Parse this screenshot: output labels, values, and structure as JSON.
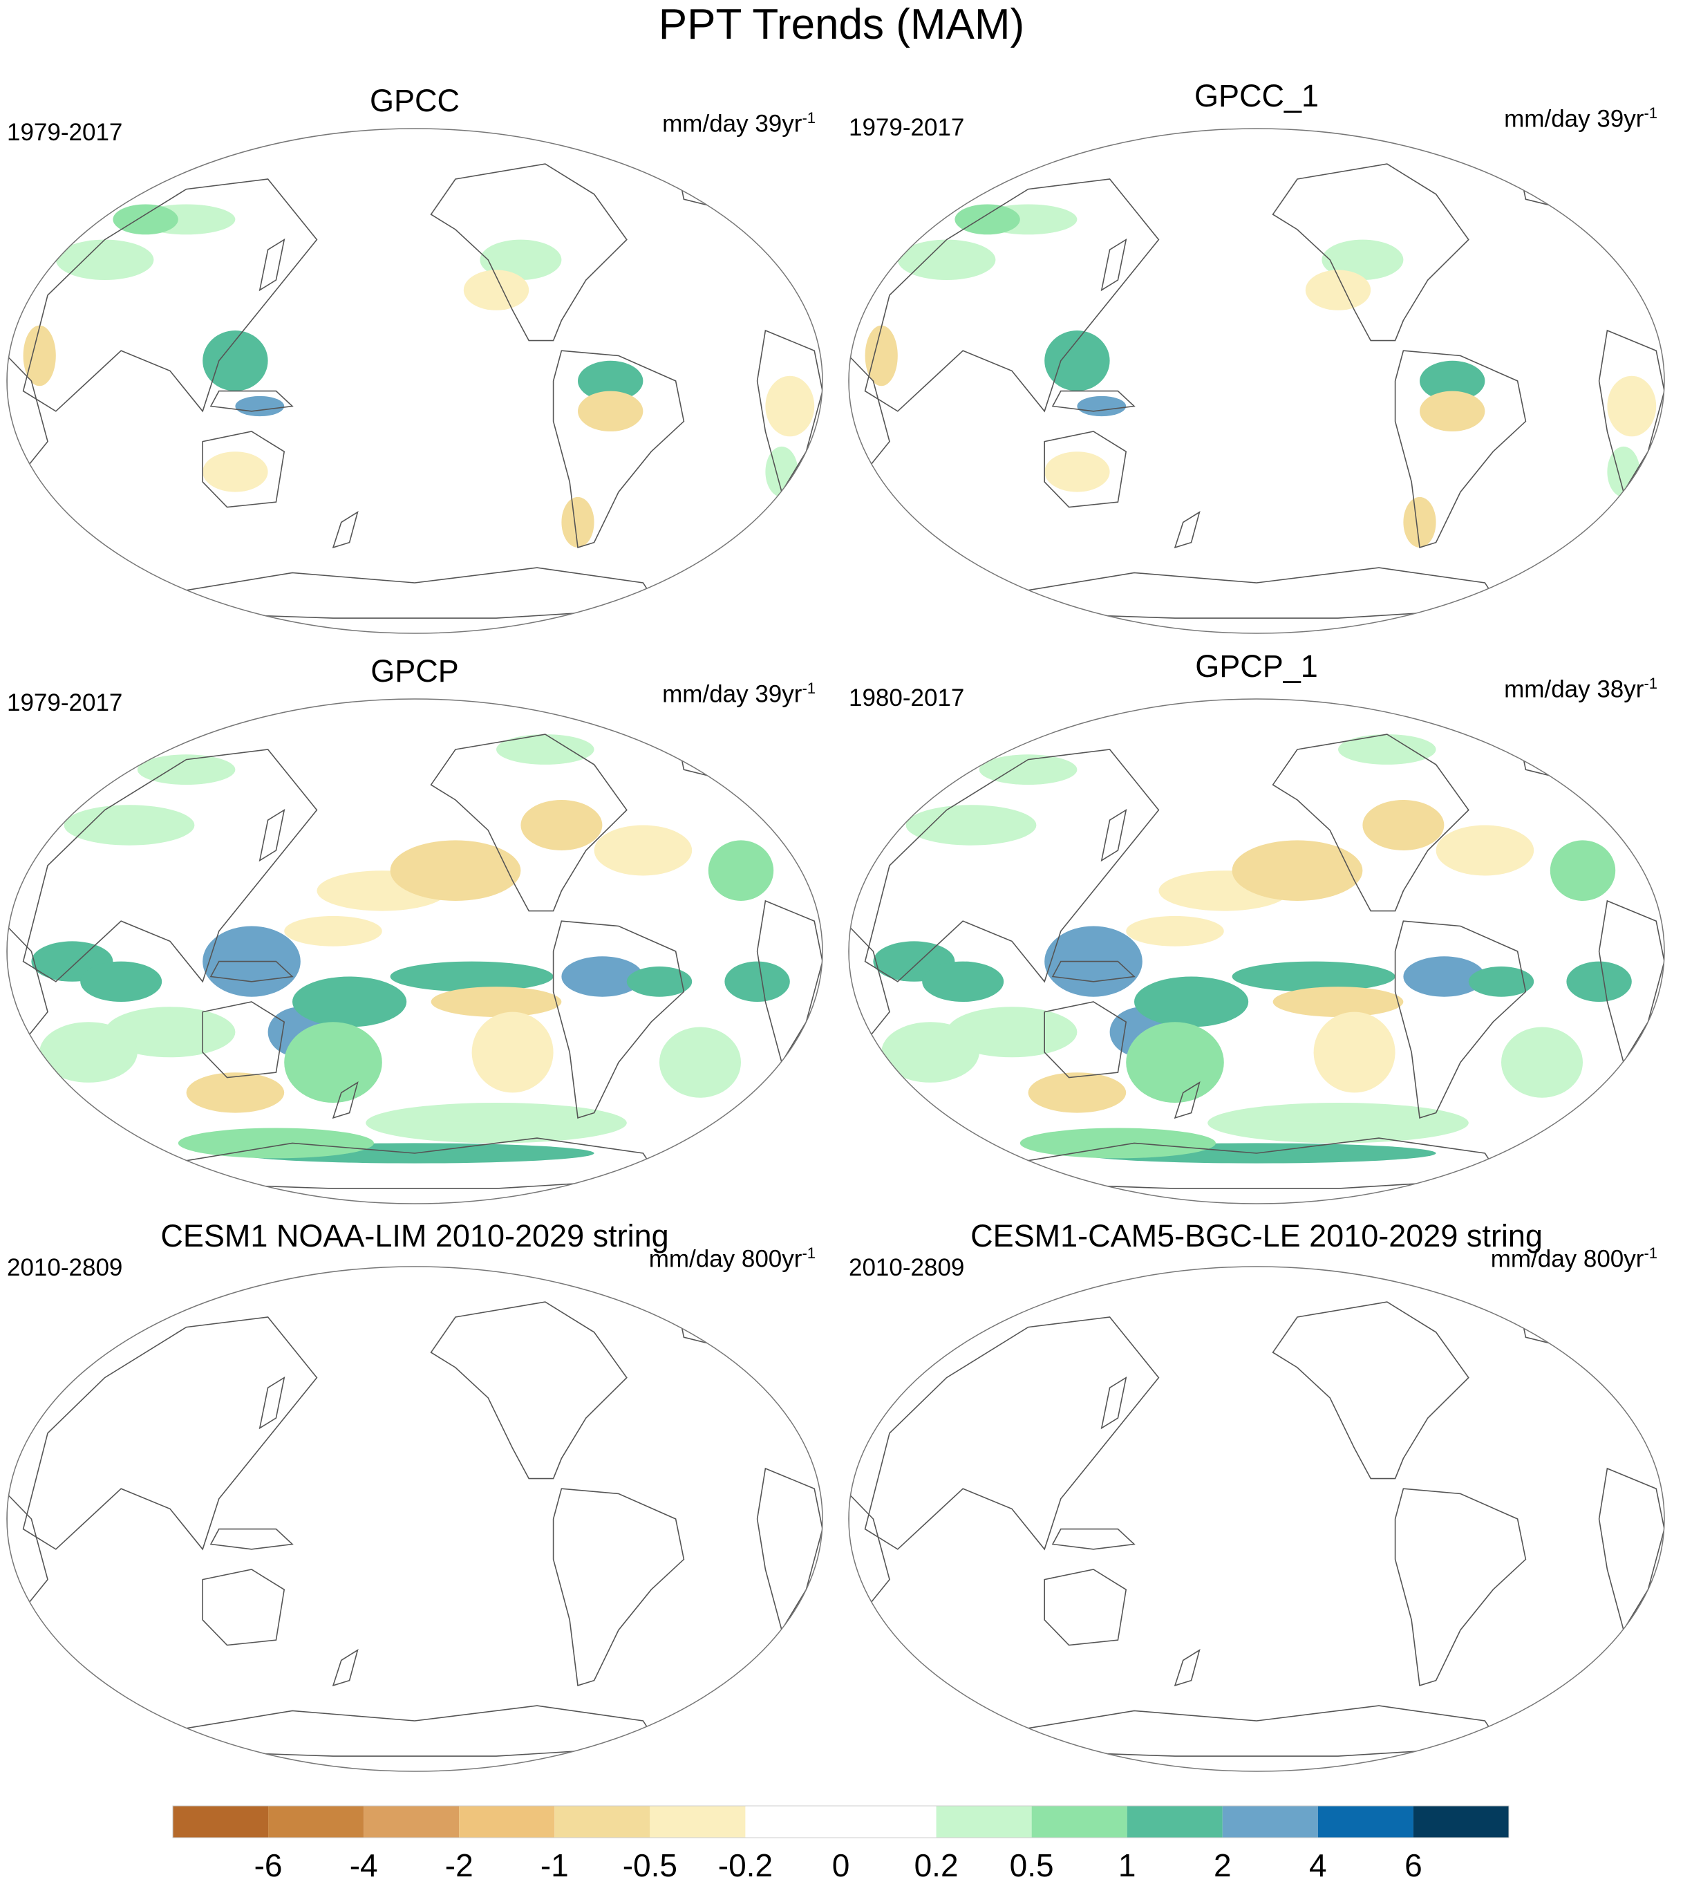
{
  "title": "PPT Trends (MAM)",
  "panels": [
    {
      "title": "GPCC",
      "period": "1979-2017",
      "units": "mm/day 39yr",
      "units_sup": "-1",
      "fill": "sparse_land"
    },
    {
      "title": "GPCC_1",
      "period": "1979-2017",
      "units": "mm/day 39yr",
      "units_sup": "-1",
      "fill": "sparse_land"
    },
    {
      "title": "GPCP",
      "period": "1979-2017",
      "units": "mm/day 39yr",
      "units_sup": "-1",
      "fill": "global"
    },
    {
      "title": "GPCP_1",
      "period": "1980-2017",
      "units": "mm/day 38yr",
      "units_sup": "-1",
      "fill": "global"
    },
    {
      "title": "CESM1 NOAA-LIM 2010-2029 string",
      "period": "2010-2809",
      "units": "mm/day 800yr",
      "units_sup": "-1",
      "fill": "none"
    },
    {
      "title": "CESM1-CAM5-BGC-LE 2010-2029 string",
      "period": "2010-2809",
      "units": "mm/day 800yr",
      "units_sup": "-1",
      "fill": "none"
    }
  ],
  "colorbar": {
    "labels": [
      "-6",
      "-4",
      "-2",
      "-1",
      "-0.5",
      "-0.2",
      "0",
      "0.2",
      "0.5",
      "1",
      "2",
      "4",
      "6"
    ],
    "colors": [
      "#b5692a",
      "#c9853f",
      "#dba060",
      "#efc47c",
      "#f3dc9b",
      "#fbefbf",
      "#ffffff",
      "#ffffff",
      "#c7f6cd",
      "#8fe3a6",
      "#55bd9b",
      "#6ba4c9",
      "#0a6aad",
      "#043b5d"
    ]
  }
}
